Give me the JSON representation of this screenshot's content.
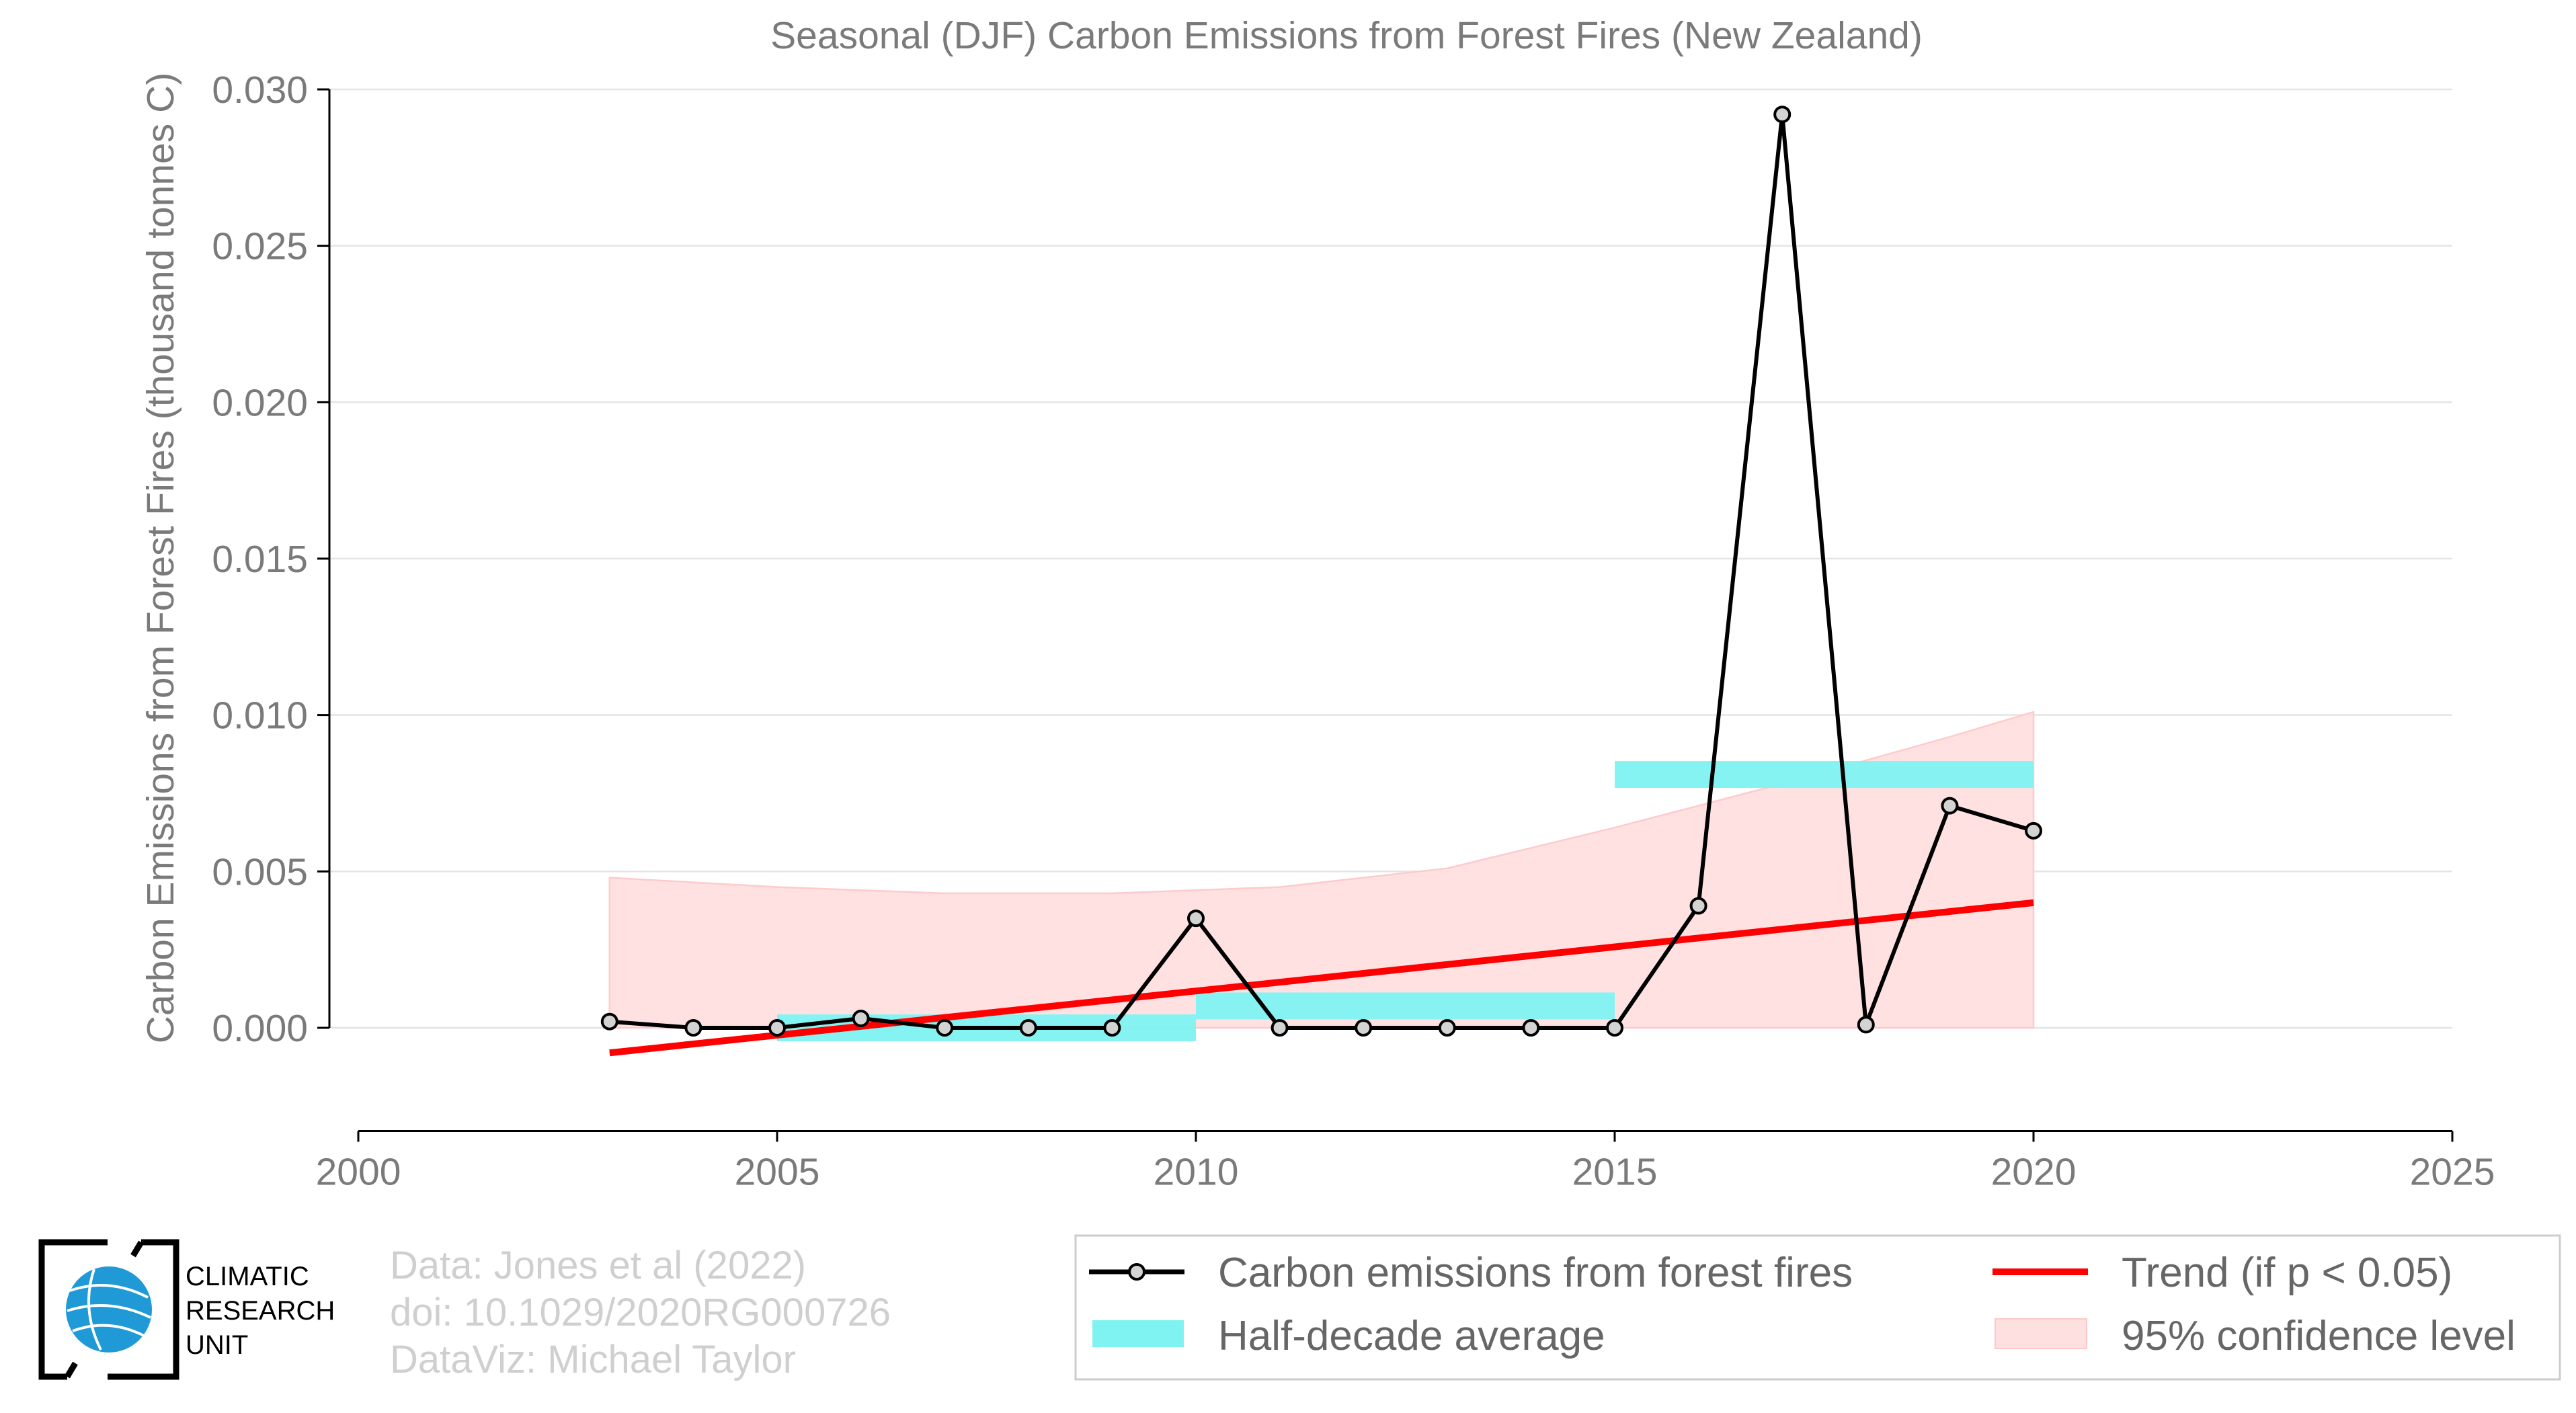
{
  "chart_data": {
    "type": "line",
    "title": "Seasonal (DJF) Carbon Emissions from Forest Fires (New Zealand)",
    "xlabel": "",
    "ylabel": "Carbon Emissions from Forest Fires (thousand tonnes C)",
    "xlim": [
      2000,
      2025
    ],
    "ylim": [
      -0.0033,
      0.03
    ],
    "xticks": [
      2000,
      2005,
      2010,
      2015,
      2020,
      2025
    ],
    "xtick_labels": [
      "2000",
      "2005",
      "2010",
      "2015",
      "2020",
      "2025"
    ],
    "yticks": [
      0.0,
      0.005,
      0.01,
      0.015,
      0.02,
      0.025,
      0.03
    ],
    "ytick_labels": [
      "0.000",
      "0.005",
      "0.010",
      "0.015",
      "0.020",
      "0.025",
      "0.030"
    ],
    "grid": "horizontal",
    "legend_placement": "bottom-right",
    "series": [
      {
        "name": "Carbon emissions from forest fires",
        "style": "line-with-markers",
        "color": "#000000",
        "x": [
          2003,
          2004,
          2005,
          2006,
          2007,
          2008,
          2009,
          2010,
          2011,
          2012,
          2013,
          2014,
          2015,
          2016,
          2017,
          2018,
          2019,
          2020
        ],
        "y": [
          0.0002,
          0.0,
          0.0,
          0.0003,
          0.0,
          0.0,
          0.0,
          0.0035,
          0.0,
          0.0,
          0.0,
          0.0,
          0.0,
          0.0039,
          0.0292,
          0.0001,
          0.0071,
          0.0063
        ]
      },
      {
        "name": "Half-decade average",
        "style": "band",
        "color": "#7ff2f2",
        "periods": [
          {
            "start": 2005,
            "end": 2010,
            "value": 0.0
          },
          {
            "start": 2010,
            "end": 2015,
            "value": 0.0007
          },
          {
            "start": 2015,
            "end": 2020,
            "value": 0.0081
          }
        ]
      },
      {
        "name": "Trend (if p < 0.05)",
        "style": "line",
        "color": "#ff0000",
        "x": [
          2003,
          2020
        ],
        "y": [
          -0.0008,
          0.004
        ]
      },
      {
        "name": "95% confidence level",
        "style": "area",
        "color": "#ffe0e0",
        "x": [
          2003,
          2005,
          2007,
          2009,
          2011,
          2013,
          2015,
          2017,
          2019,
          2020
        ],
        "upper": [
          0.0048,
          0.0045,
          0.0043,
          0.0043,
          0.0045,
          0.0051,
          0.0064,
          0.0078,
          0.0093,
          0.0101
        ],
        "lower": [
          0.0,
          0.0,
          0.0,
          0.0,
          0.0,
          0.0,
          0.0,
          0.0,
          0.0,
          0.0
        ]
      }
    ],
    "annotations": [
      "Data: Jones et al (2022)",
      "doi: 10.1029/2020RG000726",
      "DataViz: Michael Taylor"
    ]
  },
  "logo": {
    "line1": "CLIMATIC",
    "line2": "RESEARCH",
    "line3": "UNIT",
    "icon": "globe-icon"
  },
  "colors": {
    "line": "#000000",
    "marker_fill": "#d3d3d3",
    "band": "#7ff2f2",
    "trend": "#ff0000",
    "ci_fill": "#ffe0e0",
    "ci_edge": "#ffc8c8",
    "grid": "#e4e4e4",
    "text": "#7a7a7a"
  }
}
